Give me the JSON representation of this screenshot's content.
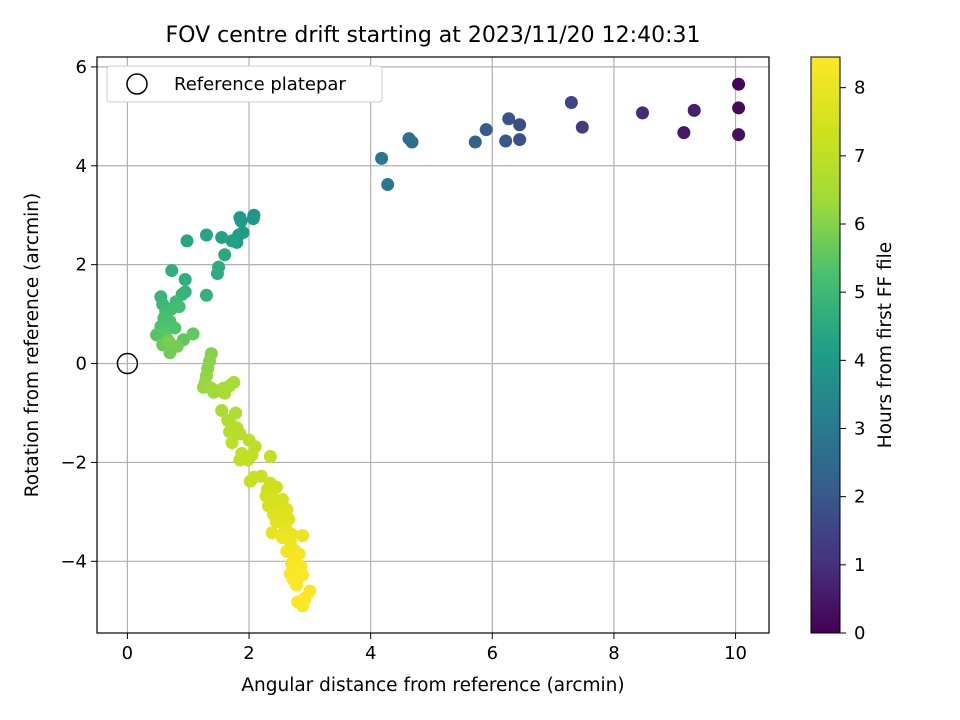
{
  "chart_data": {
    "type": "scatter",
    "title": "FOV centre drift starting at 2023/11/20 12:40:31",
    "xlabel": "Angular distance from reference (arcmin)",
    "ylabel": "Rotation from reference (arcmin)",
    "colorbar_label": "Hours from first FF file",
    "colormap": "viridis",
    "xlim": [
      -0.5,
      10.55
    ],
    "ylim": [
      -5.45,
      6.2
    ],
    "clim": [
      0,
      8.45
    ],
    "xticks": [
      0,
      2,
      4,
      6,
      8,
      10
    ],
    "xtick_labels": [
      "0",
      "2",
      "4",
      "6",
      "8",
      "10"
    ],
    "yticks": [
      -4,
      -2,
      0,
      2,
      4,
      6
    ],
    "ytick_labels": [
      "−4",
      "−2",
      "0",
      "2",
      "4",
      "6"
    ],
    "cticks": [
      0,
      1,
      2,
      3,
      4,
      5,
      6,
      7,
      8
    ],
    "ctick_labels": [
      "0",
      "1",
      "2",
      "3",
      "4",
      "5",
      "6",
      "7",
      "8"
    ],
    "grid": true,
    "legend": {
      "position": "upper-left",
      "entries": [
        "Reference platepar"
      ]
    },
    "reference_point": {
      "x": 0,
      "y": 0,
      "label": "Reference platepar"
    },
    "points": [
      [
        10.05,
        5.65,
        0.1
      ],
      [
        10.05,
        5.17,
        0.2
      ],
      [
        10.05,
        4.63,
        0.3
      ],
      [
        9.15,
        4.67,
        0.5
      ],
      [
        9.32,
        5.12,
        0.7
      ],
      [
        8.47,
        5.07,
        0.9
      ],
      [
        7.48,
        4.78,
        1.3
      ],
      [
        7.3,
        5.28,
        1.5
      ],
      [
        6.45,
        4.83,
        1.7
      ],
      [
        6.45,
        4.53,
        1.8
      ],
      [
        6.27,
        4.95,
        1.9
      ],
      [
        6.22,
        4.5,
        2.0
      ],
      [
        5.9,
        4.73,
        2.1
      ],
      [
        5.72,
        4.48,
        2.3
      ],
      [
        4.68,
        4.48,
        2.6
      ],
      [
        4.63,
        4.55,
        2.7
      ],
      [
        4.18,
        4.15,
        2.9
      ],
      [
        4.28,
        3.62,
        3.0
      ],
      [
        2.08,
        3.0,
        3.9
      ],
      [
        2.07,
        2.93,
        3.9
      ],
      [
        1.85,
        2.95,
        3.95
      ],
      [
        1.87,
        2.88,
        4.0
      ],
      [
        1.9,
        2.65,
        4.05
      ],
      [
        1.83,
        2.6,
        4.1
      ],
      [
        1.8,
        2.45,
        4.15
      ],
      [
        1.72,
        2.48,
        4.2
      ],
      [
        1.55,
        2.55,
        4.3
      ],
      [
        1.3,
        2.6,
        4.35
      ],
      [
        0.98,
        2.48,
        4.4
      ],
      [
        1.6,
        2.2,
        4.5
      ],
      [
        1.5,
        1.95,
        4.55
      ],
      [
        1.48,
        1.82,
        4.6
      ],
      [
        0.95,
        1.7,
        4.65
      ],
      [
        0.73,
        1.88,
        4.7
      ],
      [
        1.3,
        1.38,
        4.75
      ],
      [
        0.95,
        1.45,
        4.8
      ],
      [
        0.9,
        1.4,
        4.85
      ],
      [
        0.55,
        1.35,
        4.9
      ],
      [
        0.58,
        1.2,
        4.95
      ],
      [
        0.8,
        1.25,
        5.0
      ],
      [
        0.72,
        1.1,
        5.05
      ],
      [
        0.63,
        1.05,
        5.1
      ],
      [
        0.85,
        1.15,
        5.15
      ],
      [
        0.6,
        0.92,
        5.2
      ],
      [
        0.7,
        0.85,
        5.25
      ],
      [
        0.55,
        0.75,
        5.3
      ],
      [
        0.78,
        0.72,
        5.35
      ],
      [
        0.62,
        0.62,
        5.4
      ],
      [
        0.48,
        0.58,
        5.45
      ],
      [
        0.65,
        0.5,
        5.5
      ],
      [
        0.92,
        0.48,
        5.55
      ],
      [
        1.08,
        0.6,
        5.6
      ],
      [
        0.58,
        0.38,
        5.65
      ],
      [
        0.72,
        0.3,
        5.7
      ],
      [
        0.7,
        0.22,
        5.75
      ],
      [
        0.82,
        0.35,
        5.8
      ],
      [
        0.68,
        0.45,
        5.85
      ],
      [
        1.38,
        0.2,
        6.0
      ],
      [
        1.35,
        0.05,
        6.05
      ],
      [
        1.32,
        -0.1,
        6.1
      ],
      [
        1.3,
        -0.25,
        6.15
      ],
      [
        1.28,
        -0.38,
        6.2
      ],
      [
        1.25,
        -0.48,
        6.25
      ],
      [
        1.38,
        -0.5,
        6.3
      ],
      [
        1.42,
        -0.58,
        6.35
      ],
      [
        1.5,
        -0.55,
        6.4
      ],
      [
        1.58,
        -0.5,
        6.45
      ],
      [
        1.68,
        -0.45,
        6.5
      ],
      [
        1.75,
        -0.38,
        6.5
      ],
      [
        1.6,
        -0.6,
        6.55
      ],
      [
        1.55,
        -0.95,
        6.6
      ],
      [
        1.78,
        -1.0,
        6.65
      ],
      [
        1.65,
        -1.15,
        6.7
      ],
      [
        1.72,
        -1.25,
        6.75
      ],
      [
        1.8,
        -1.3,
        6.8
      ],
      [
        1.68,
        -1.38,
        6.85
      ],
      [
        1.85,
        -1.42,
        6.85
      ],
      [
        1.72,
        -1.6,
        6.9
      ],
      [
        2.0,
        -1.55,
        6.95
      ],
      [
        2.1,
        -1.68,
        7.0
      ],
      [
        1.88,
        -1.82,
        7.05
      ],
      [
        2.05,
        -1.85,
        7.05
      ],
      [
        1.85,
        -1.95,
        7.1
      ],
      [
        1.98,
        -1.95,
        7.1
      ],
      [
        2.35,
        -1.88,
        7.15
      ],
      [
        2.08,
        -2.3,
        7.2
      ],
      [
        2.2,
        -2.28,
        7.25
      ],
      [
        2.02,
        -2.38,
        7.25
      ],
      [
        2.35,
        -2.42,
        7.3
      ],
      [
        2.3,
        -2.55,
        7.35
      ],
      [
        2.45,
        -2.5,
        7.4
      ],
      [
        2.28,
        -2.68,
        7.45
      ],
      [
        2.4,
        -2.72,
        7.5
      ],
      [
        2.55,
        -2.75,
        7.5
      ],
      [
        2.32,
        -2.88,
        7.55
      ],
      [
        2.48,
        -2.95,
        7.6
      ],
      [
        2.62,
        -2.95,
        7.65
      ],
      [
        2.4,
        -3.05,
        7.7
      ],
      [
        2.55,
        -3.1,
        7.75
      ],
      [
        2.65,
        -3.15,
        7.75
      ],
      [
        2.45,
        -3.2,
        7.8
      ],
      [
        2.6,
        -3.28,
        7.85
      ],
      [
        2.38,
        -3.42,
        7.9
      ],
      [
        2.58,
        -3.4,
        7.95
      ],
      [
        2.7,
        -3.45,
        8.0
      ],
      [
        2.88,
        -3.48,
        8.0
      ],
      [
        2.55,
        -3.52,
        8.05
      ],
      [
        2.68,
        -3.6,
        8.1
      ],
      [
        2.75,
        -3.78,
        8.15
      ],
      [
        2.62,
        -3.8,
        8.2
      ],
      [
        2.82,
        -3.85,
        8.2
      ],
      [
        2.75,
        -3.95,
        8.25
      ],
      [
        2.7,
        -4.05,
        8.3
      ],
      [
        2.85,
        -4.1,
        8.3
      ],
      [
        2.8,
        -4.2,
        8.35
      ],
      [
        2.68,
        -4.25,
        8.35
      ],
      [
        2.88,
        -4.28,
        8.4
      ],
      [
        2.72,
        -4.35,
        8.4
      ],
      [
        2.78,
        -4.48,
        8.4
      ],
      [
        3.0,
        -4.6,
        8.42
      ],
      [
        2.92,
        -4.75,
        8.44
      ],
      [
        2.8,
        -4.82,
        8.44
      ],
      [
        2.88,
        -4.9,
        8.45
      ]
    ]
  }
}
